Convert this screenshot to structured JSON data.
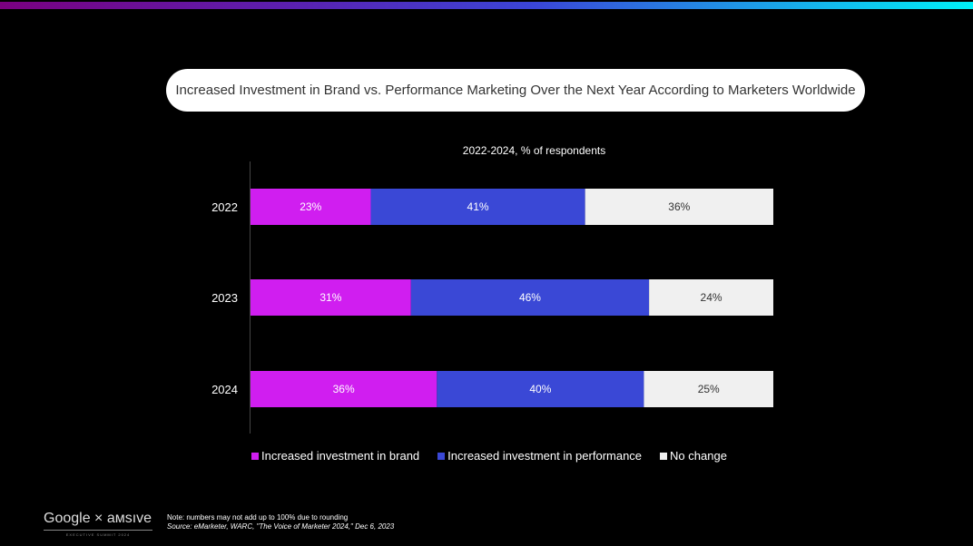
{
  "colors": {
    "brand": "#d01ef0",
    "performance": "#3a48d6",
    "no_change": "#f0f0f0"
  },
  "chart_data": {
    "type": "bar",
    "orientation": "horizontal-stacked",
    "title": "Increased Investment in Brand vs. Performance Marketing Over the Next Year According to Marketers Worldwide",
    "subtitle": "2022-2024, % of respondents",
    "categories": [
      "2022",
      "2023",
      "2024"
    ],
    "series": [
      {
        "name": "Increased investment in brand",
        "values": [
          23,
          31,
          36
        ],
        "labels": [
          "23%",
          "31%",
          "36%"
        ]
      },
      {
        "name": "Increased investment in performance",
        "values": [
          41,
          46,
          40
        ],
        "labels": [
          "41%",
          "46%",
          "40%"
        ]
      },
      {
        "name": "No change",
        "values": [
          36,
          24,
          25
        ],
        "labels": [
          "36%",
          "24%",
          "25%"
        ]
      }
    ],
    "legend": "bottom",
    "grid": false
  },
  "footer": {
    "logo_text": "Google × амsıve",
    "logo_sub": "EXECUTIVE SUMMIT 2024",
    "note": "Note: numbers may not add up to 100% due to rounding",
    "source": "Source: eMarketer, WARC, \"The Voice of Marketer 2024,\" Dec 6, 2023"
  }
}
